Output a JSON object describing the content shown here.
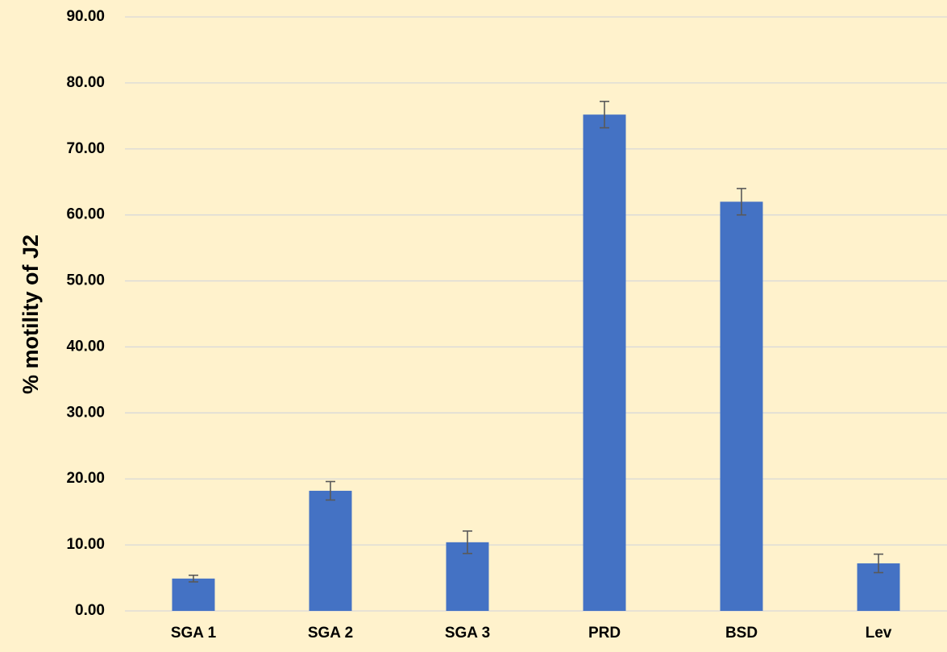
{
  "chart_data": {
    "type": "bar",
    "ylabel": "% motility of J2",
    "categories": [
      "SGA 1",
      "SGA 2",
      "SGA 3",
      "PRD",
      "BSD",
      "Lev"
    ],
    "values": [
      4.9,
      18.2,
      10.4,
      75.2,
      62.0,
      7.2
    ],
    "errors": [
      0.5,
      1.4,
      1.7,
      2.0,
      2.0,
      1.4
    ],
    "color": "#4472c4",
    "error_color": "#595959",
    "ylim": [
      0,
      90
    ],
    "yticks": [
      {
        "value": 0,
        "label": "0.00"
      },
      {
        "value": 10,
        "label": "10.00"
      },
      {
        "value": 20,
        "label": "20.00"
      },
      {
        "value": 30,
        "label": "30.00"
      },
      {
        "value": 40,
        "label": "40.00"
      },
      {
        "value": 50,
        "label": "50.00"
      },
      {
        "value": 60,
        "label": "60.00"
      },
      {
        "value": 70,
        "label": "70.00"
      },
      {
        "value": 80,
        "label": "80.00"
      },
      {
        "value": 90,
        "label": "90.00"
      }
    ],
    "grid": true
  }
}
